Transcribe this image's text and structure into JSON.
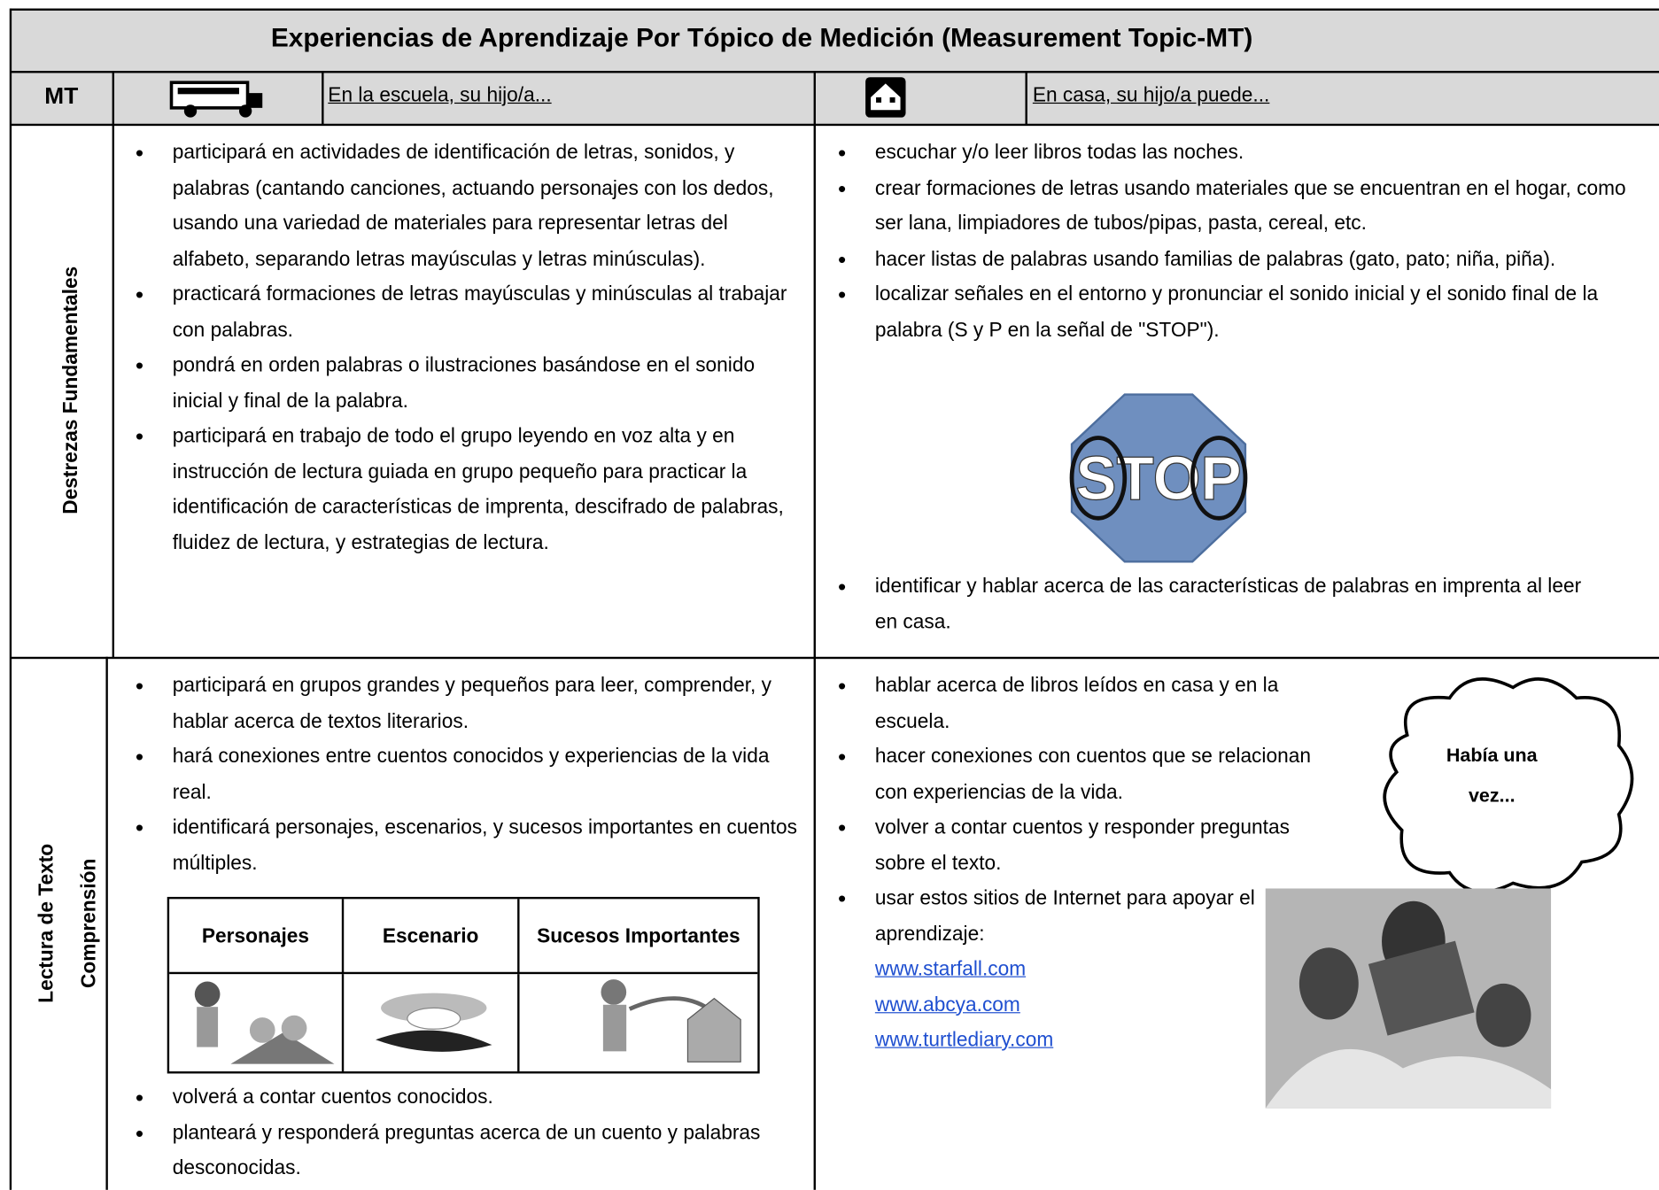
{
  "title": "Experiencias de Aprendizaje Por Tópico de Medición (Measurement Topic-MT)",
  "header": {
    "mt": "MT",
    "school": "En la escuela, su hijo/a...",
    "home": "En casa, su hijo/a puede..."
  },
  "rows": [
    {
      "label": "Destrezas Fundamentales",
      "school": [
        "participará en actividades de identificación de letras, sonidos, y palabras (cantando canciones, actuando personajes con los dedos, usando una variedad de materiales para representar letras del alfabeto, separando letras mayúsculas y letras minúsculas).",
        "practicará formaciones de letras mayúsculas y minúsculas al trabajar con palabras.",
        "pondrá en orden palabras o ilustraciones basándose en el sonido inicial y final de la palabra.",
        "participará en trabajo de todo el grupo leyendo en voz alta y en instrucción de lectura guiada en grupo pequeño para practicar la identificación de características de imprenta, descifrado de palabras, fluidez de lectura, y estrategias de lectura."
      ],
      "home": [
        "escuchar y/o leer libros todas las noches.",
        "crear formaciones de letras usando materiales que se encuentran en el hogar, como ser lana, limpiadores de tubos/pipas, pasta, cereal, etc.",
        "hacer listas de palabras usando familias de palabras (gato, pato; niña, piña).",
        "localizar señales en el entorno y pronunciar el sonido inicial y el sonido final de la palabra (S y P en la señal de \"STOP\")."
      ],
      "sign": "STOP",
      "home_after": [
        "identificar y hablar acerca de las características de palabras en imprenta al leer en casa."
      ]
    },
    {
      "label": [
        "Lectura de Texto",
        "Comprensión"
      ],
      "school": [
        "participará en grupos grandes y pequeños para leer, comprender, y hablar acerca de textos literarios.",
        "hará conexiones entre cuentos conocidos y experiencias de la vida real.",
        "identificará personajes, escenarios, y sucesos importantes en cuentos múltiples."
      ],
      "table": [
        "Personajes",
        "Escenario",
        "Sucesos Importantes"
      ],
      "school_after": [
        "volverá a contar cuentos conocidos.",
        "planteará y responderá preguntas acerca de un cuento y palabras desconocidas."
      ],
      "home": [
        "hablar acerca de libros leídos en casa y en la escuela.",
        "hacer conexiones con cuentos que se relacionan con experiencias de la vida.",
        "volver a contar cuentos y responder preguntas sobre el texto.",
        "usar estos sitios de Internet para apoyar el aprendizaje:"
      ],
      "links": [
        "www.starfall.com",
        "www.abcya.com",
        "www.turtlediary.com"
      ],
      "bubble": "Había una vez..."
    }
  ]
}
